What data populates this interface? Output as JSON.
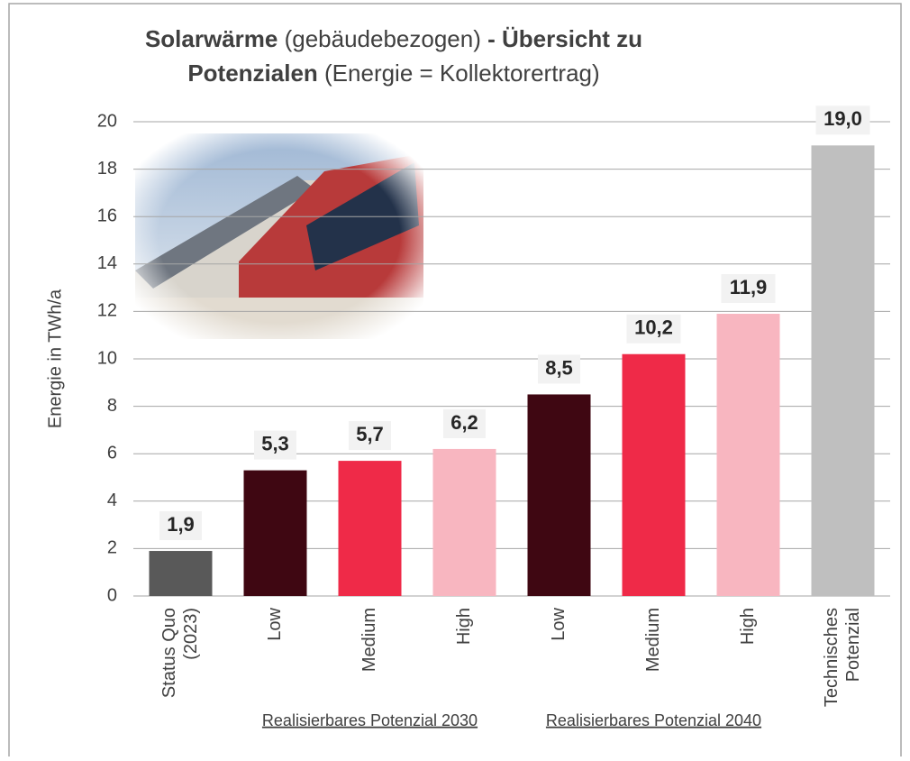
{
  "chart_data": {
    "type": "bar",
    "title": [
      [
        {
          "text": "Solarwärme",
          "bold": true
        },
        {
          "text": " (gebäudebezogen)",
          "bold": false
        },
        {
          "text": " - Übersicht zu",
          "bold": true
        }
      ],
      [
        {
          "text": "Potenzialen",
          "bold": true
        },
        {
          "text": " (Energie = Kollektorertrag)",
          "bold": false
        }
      ]
    ],
    "y_label": "Energie in TWh/a",
    "categories": [
      [
        "Status Quo",
        "(2023)"
      ],
      [
        "Low"
      ],
      [
        "Medium"
      ],
      [
        "High"
      ],
      [
        "Low"
      ],
      [
        "Medium"
      ],
      [
        "High"
      ],
      [
        "Technisches",
        "Potenzial"
      ]
    ],
    "values": [
      1.9,
      5.3,
      5.7,
      6.2,
      8.5,
      10.2,
      11.9,
      19.0
    ],
    "value_labels": [
      "1,9",
      "5,3",
      "5,7",
      "6,2",
      "8,5",
      "10,2",
      "11,9",
      "19,0"
    ],
    "colors": [
      "#595959",
      "#3f0712",
      "#ef2a48",
      "#f8b6c0",
      "#3f0712",
      "#ef2a48",
      "#f8b6c0",
      "#bfbfbf"
    ],
    "groups": [
      {
        "label": "Realisierbares Potenzial 2030",
        "from": 1,
        "to": 3
      },
      {
        "label": "Realisierbares Potenzial 2040",
        "from": 4,
        "to": 6
      }
    ],
    "ylim": [
      0,
      20
    ],
    "yticks": [
      0,
      2,
      4,
      6,
      8,
      10,
      12,
      14,
      16,
      18,
      20
    ],
    "grid": true
  }
}
